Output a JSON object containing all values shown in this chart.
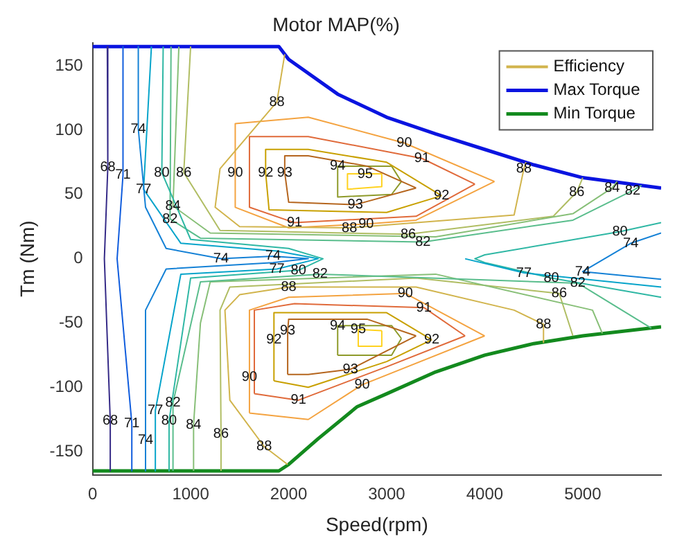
{
  "chart_data": {
    "type": "line",
    "title": "Motor MAP(%)",
    "xlabel": "Speed(rpm)",
    "ylabel": "Tm (Nm)",
    "xlim": [
      0,
      5800
    ],
    "xticks": [
      0,
      1000,
      2000,
      3000,
      4000,
      5000
    ],
    "ylim": [
      -168,
      168
    ],
    "yticks": [
      -150,
      -100,
      -50,
      0,
      50,
      100,
      150
    ],
    "legend": "top right",
    "marker": "none",
    "line_style": "solid",
    "series": [
      {
        "name": "Efficiency",
        "color": "#d1b44c",
        "x": [
          1960,
          1880,
          1300,
          1250,
          1500,
          2620,
          4300,
          4400,
          4420,
          null,
          1990,
          1750,
          1400,
          1350,
          1500,
          2000,
          3300,
          4300,
          4600,
          4600
        ],
        "values": [
          159,
          122,
          70,
          40,
          25,
          24,
          34,
          70,
          75,
          null,
          -160,
          -146,
          -110,
          -40,
          -28,
          -22,
          -22,
          -40,
          -51,
          -65
        ]
      },
      {
        "color": "#352a87",
        "x": [
          150,
          155,
          120,
          180,
          180
        ],
        "values": [
          165,
          71,
          0,
          -126,
          -165
        ]
      },
      {
        "color": "#0f5cdd",
        "x": [
          310,
          310,
          250,
          400,
          400
        ],
        "values": [
          165,
          65,
          0,
          -128,
          -165
        ]
      },
      {
        "color": "#1481d6",
        "x": [
          466,
          466,
          540,
          750,
          1310,
          1840,
          2200,
          1840,
          750,
          540,
          540,
          null,
          5800,
          5490,
          5000,
          5800
        ],
        "values": [
          165,
          101,
          40,
          8,
          0,
          2,
          0,
          -3,
          -8,
          -40,
          -165,
          null,
          20,
          12,
          -10,
          -16
        ]
      },
      {
        "color": "#06a4ca",
        "x": [
          600,
          520,
          900,
          1880,
          2300,
          1880,
          900,
          640,
          640,
          null,
          3800,
          4400,
          5800
        ],
        "values": [
          165,
          54,
          12,
          6,
          0,
          -8,
          -12,
          -118,
          -165,
          null,
          0,
          -11,
          -22
        ]
      },
      {
        "color": "#2eb7a4",
        "x": [
          720,
          706,
          1000,
          2000,
          2350,
          2100,
          1000,
          780,
          780,
          null,
          5800,
          5380,
          4000,
          3900,
          4000,
          4680,
          5800
        ],
        "values": [
          165,
          67,
          15,
          8,
          0,
          -9,
          -15,
          -126,
          -165,
          null,
          28,
          21,
          3,
          0,
          -3,
          -15,
          -30
        ]
      },
      {
        "color": "#59bd8c",
        "x": [
          800,
          790,
          1100,
          3370,
          4900,
          5510,
          5600,
          null,
          820,
          820,
          1100,
          2320,
          4950,
          5700
        ],
        "values": [
          165,
          31,
          16,
          13,
          30,
          53,
          57,
          null,
          -165,
          -112,
          -18,
          -12,
          -19,
          -54
        ]
      },
      {
        "color": "#87bf77",
        "x": [
          880,
          820,
          1200,
          3500,
          4900,
          5300,
          5350,
          null,
          1030,
          1030,
          1100,
          1200,
          3500,
          5100,
          5200
        ],
        "values": [
          165,
          41,
          20,
          17,
          35,
          55,
          60,
          null,
          -165,
          -129,
          -50,
          -18,
          -12,
          -40,
          -58
        ]
      },
      {
        "color": "#b0bd63",
        "x": [
          1000,
          930,
          1300,
          3220,
          4700,
          4940,
          5000,
          null,
          1310,
          1310,
          1300,
          1400,
          3300,
          4760,
          4900
        ],
        "values": [
          165,
          67,
          22,
          19,
          33,
          52,
          63,
          null,
          -165,
          -136,
          -40,
          -22,
          -15,
          -27,
          -60
        ]
      },
      {
        "color": "#f4a340",
        "x": [
          1455,
          1455,
          2000,
          2790,
          3300,
          4100,
          null,
          4100,
          3180,
          2200,
          1455,
          null,
          1600,
          1600,
          2000,
          3190,
          4000,
          null,
          4000,
          2750,
          2200,
          1600
        ],
        "values": [
          105,
          40,
          24,
          27,
          30,
          60,
          null,
          60,
          90,
          110,
          105,
          null,
          -120,
          -40,
          -30,
          -27,
          -60,
          null,
          -60,
          -98,
          -125,
          -120
        ]
      },
      {
        "color": "#e06a3a",
        "x": [
          1600,
          1600,
          2060,
          3300,
          3900,
          null,
          3900,
          3360,
          2200,
          1600,
          null,
          1650,
          1650,
          2060,
          3380,
          3800,
          null,
          3800,
          3000,
          2100,
          1650
        ],
        "values": [
          95,
          40,
          28,
          33,
          58,
          null,
          58,
          78,
          95,
          95,
          null,
          -105,
          -40,
          -35,
          -38,
          -60,
          null,
          -60,
          -84,
          -110,
          -105
        ]
      },
      {
        "color": "#c8a000",
        "x": [
          1765,
          1765,
          1800,
          3000,
          3560,
          null,
          3560,
          3000,
          2200,
          1765,
          null,
          1850,
          1850,
          3000,
          3460,
          null,
          3460,
          3000,
          2200,
          1850
        ],
        "values": [
          85,
          67,
          38,
          36,
          49,
          null,
          49,
          75,
          85,
          85,
          null,
          -95,
          -42,
          -42,
          -63,
          null,
          -63,
          -80,
          -100,
          -95
        ]
      },
      {
        "color": "#b5651d",
        "x": [
          1960,
          1960,
          2000,
          2680,
          3300,
          null,
          3300,
          2800,
          2200,
          1960,
          null,
          1990,
          1990,
          2000,
          2800,
          3300,
          null,
          3300,
          2630,
          2200,
          1990
        ],
        "values": [
          80,
          67,
          44,
          42,
          55,
          null,
          55,
          72,
          80,
          80,
          null,
          -90,
          -56,
          -47,
          -47,
          -60,
          null,
          -60,
          -86,
          -90,
          -90
        ]
      },
      {
        "color": "#8e9a2a",
        "x": [
          2500,
          2500,
          3050,
          3150,
          null,
          3150,
          3050,
          2500,
          null,
          2500,
          2500,
          3050,
          3150,
          null,
          3150,
          3050,
          2500
        ],
        "values": [
          72,
          48,
          50,
          60,
          null,
          60,
          72,
          72,
          null,
          -75,
          -52,
          -52,
          -62,
          null,
          -62,
          -75,
          -75
        ]
      },
      {
        "color": "#ffd21f",
        "x": [
          2600,
          2600,
          2950,
          2950,
          null,
          2950,
          2780,
          2600,
          null,
          2710,
          2710,
          2950,
          2950,
          null,
          2950,
          2710
        ],
        "values": [
          66,
          54,
          56,
          66,
          null,
          66,
          66,
          66,
          null,
          -55,
          -68,
          -68,
          -56,
          null,
          -56,
          -55
        ]
      },
      {
        "name": "Max Torque",
        "color": "#0a14e0",
        "x": [
          0,
          1900,
          2000,
          2500,
          3000,
          3500,
          4000,
          4500,
          5000,
          5800
        ],
        "values": [
          165,
          165,
          155,
          128,
          110,
          97,
          85,
          73,
          63,
          55
        ]
      },
      {
        "name": "Min Torque",
        "color": "#138a1e",
        "x": [
          0,
          1900,
          2000,
          2300,
          2700,
          3000,
          3500,
          4000,
          4500,
          5000,
          5800
        ],
        "values": [
          -165,
          -165,
          -160,
          -140,
          -115,
          -105,
          -88,
          -75,
          -66,
          -60,
          -53
        ]
      }
    ],
    "annotations": [
      {
        "text": "68",
        "x": 155,
        "y": 71
      },
      {
        "text": "68",
        "x": 180,
        "y": -126
      },
      {
        "text": "71",
        "x": 310,
        "y": 65
      },
      {
        "text": "71",
        "x": 400,
        "y": -128
      },
      {
        "text": "74",
        "x": 466,
        "y": 101
      },
      {
        "text": "74",
        "x": 1310,
        "y": 0
      },
      {
        "text": "74",
        "x": 1840,
        "y": 2
      },
      {
        "text": "74",
        "x": 5000,
        "y": -10
      },
      {
        "text": "74",
        "x": 5490,
        "y": 12
      },
      {
        "text": "74",
        "x": 540,
        "y": -141
      },
      {
        "text": "77",
        "x": 520,
        "y": 54
      },
      {
        "text": "77",
        "x": 1880,
        "y": -8
      },
      {
        "text": "77",
        "x": 4400,
        "y": -11
      },
      {
        "text": "77",
        "x": 640,
        "y": -118
      },
      {
        "text": "80",
        "x": 706,
        "y": 67
      },
      {
        "text": "80",
        "x": 2100,
        "y": -9
      },
      {
        "text": "80",
        "x": 4680,
        "y": -15
      },
      {
        "text": "80",
        "x": 5380,
        "y": 21
      },
      {
        "text": "80",
        "x": 780,
        "y": -126
      },
      {
        "text": "82",
        "x": 790,
        "y": 31
      },
      {
        "text": "82",
        "x": 3370,
        "y": 13
      },
      {
        "text": "82",
        "x": 2320,
        "y": -12
      },
      {
        "text": "82",
        "x": 4950,
        "y": -19
      },
      {
        "text": "82",
        "x": 5510,
        "y": 53
      },
      {
        "text": "82",
        "x": 820,
        "y": -112
      },
      {
        "text": "84",
        "x": 820,
        "y": 41
      },
      {
        "text": "84",
        "x": 5300,
        "y": 55
      },
      {
        "text": "84",
        "x": 1030,
        "y": -129
      },
      {
        "text": "86",
        "x": 930,
        "y": 67
      },
      {
        "text": "86",
        "x": 3220,
        "y": 19
      },
      {
        "text": "86",
        "x": 4940,
        "y": 52
      },
      {
        "text": "86",
        "x": 4760,
        "y": -27
      },
      {
        "text": "86",
        "x": 1310,
        "y": -136
      },
      {
        "text": "88",
        "x": 1880,
        "y": 122
      },
      {
        "text": "88",
        "x": 2620,
        "y": 24
      },
      {
        "text": "88",
        "x": 2000,
        "y": -22
      },
      {
        "text": "88",
        "x": 4400,
        "y": 70
      },
      {
        "text": "88",
        "x": 4600,
        "y": -51
      },
      {
        "text": "88",
        "x": 1750,
        "y": -146
      },
      {
        "text": "90",
        "x": 1455,
        "y": 67
      },
      {
        "text": "90",
        "x": 2790,
        "y": 27
      },
      {
        "text": "90",
        "x": 3180,
        "y": 90
      },
      {
        "text": "90",
        "x": 1600,
        "y": -92
      },
      {
        "text": "90",
        "x": 3190,
        "y": -27
      },
      {
        "text": "90",
        "x": 2750,
        "y": -98
      },
      {
        "text": "91",
        "x": 2060,
        "y": 28
      },
      {
        "text": "91",
        "x": 3360,
        "y": 78
      },
      {
        "text": "91",
        "x": 2100,
        "y": -110
      },
      {
        "text": "91",
        "x": 3380,
        "y": -38
      },
      {
        "text": "92",
        "x": 1765,
        "y": 67
      },
      {
        "text": "92",
        "x": 3560,
        "y": 49
      },
      {
        "text": "92",
        "x": 1850,
        "y": -63
      },
      {
        "text": "92",
        "x": 3460,
        "y": -63
      },
      {
        "text": "93",
        "x": 1960,
        "y": 67
      },
      {
        "text": "93",
        "x": 2680,
        "y": 42
      },
      {
        "text": "93",
        "x": 1990,
        "y": -56
      },
      {
        "text": "93",
        "x": 2630,
        "y": -86
      },
      {
        "text": "94",
        "x": 2500,
        "y": 72
      },
      {
        "text": "94",
        "x": 2500,
        "y": -52
      },
      {
        "text": "95",
        "x": 2780,
        "y": 66
      },
      {
        "text": "95",
        "x": 2710,
        "y": -55
      }
    ]
  }
}
